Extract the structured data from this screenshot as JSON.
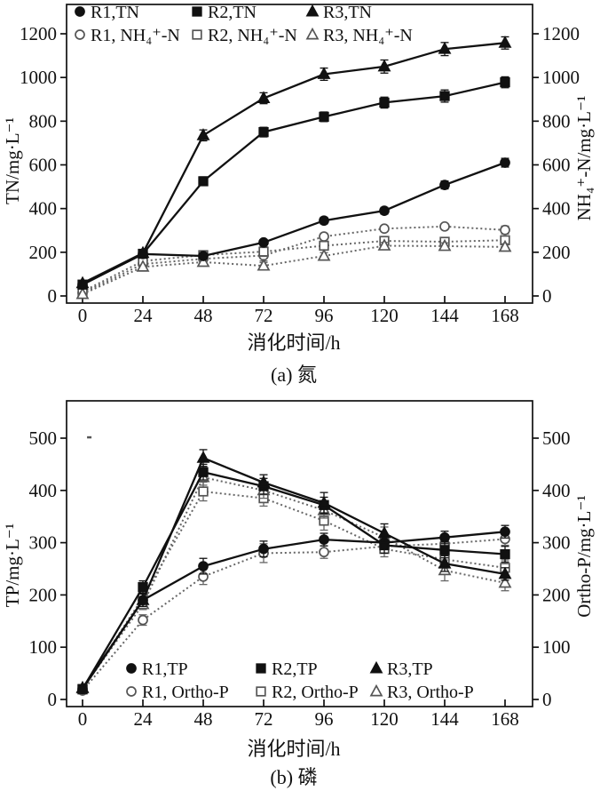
{
  "figure": {
    "background": "#ffffff",
    "colors": {
      "solid_line": "#111111",
      "dotted_line": "#666666",
      "open_marker_stroke": "#555555",
      "filled_marker": "#111111",
      "axis": "#111111"
    }
  },
  "chart_data": [
    {
      "id": "panel-a",
      "type": "line",
      "caption": "(a) 氮",
      "xlabel": "消化时间/h",
      "ylabel_left": "TN/mg·L⁻¹",
      "ylabel_right": "NH₄⁺-N/mg·L⁻¹",
      "x": [
        0,
        24,
        48,
        72,
        96,
        120,
        144,
        168
      ],
      "xticks": [
        0,
        24,
        48,
        72,
        96,
        120,
        144,
        168
      ],
      "yticks": [
        0,
        200,
        400,
        600,
        800,
        1000,
        1200
      ],
      "y_tick_max": 1200,
      "x_max": 168,
      "grid": false,
      "legend_position": "top-inside",
      "legend_rows": [
        [
          "R1,TN",
          "R2,TN",
          "R3,TN"
        ],
        [
          "R1, NH₄⁺-N",
          "R2, NH₄⁺-N",
          "R3, NH₄⁺-N"
        ]
      ],
      "series": [
        {
          "name": "R1,TN",
          "marker": "circle",
          "fill": "filled",
          "line": "solid",
          "values": [
            52,
            192,
            183,
            245,
            345,
            390,
            508,
            610
          ],
          "err": [
            8,
            10,
            10,
            12,
            15,
            15,
            18,
            20
          ]
        },
        {
          "name": "R2,TN",
          "marker": "square",
          "fill": "filled",
          "line": "solid",
          "values": [
            52,
            193,
            525,
            750,
            820,
            885,
            915,
            978
          ],
          "err": [
            8,
            10,
            20,
            22,
            22,
            25,
            28,
            25
          ]
        },
        {
          "name": "R3,TN",
          "marker": "triangle",
          "fill": "filled",
          "line": "solid",
          "values": [
            58,
            196,
            735,
            905,
            1015,
            1050,
            1130,
            1158
          ],
          "err": [
            8,
            10,
            25,
            25,
            28,
            30,
            30,
            28
          ]
        },
        {
          "name": "R1, NH₄⁺-N",
          "marker": "circle",
          "fill": "open",
          "line": "dotted",
          "values": [
            14,
            146,
            170,
            185,
            272,
            308,
            318,
            302
          ],
          "err": [
            5,
            10,
            15,
            25,
            15,
            12,
            12,
            18
          ]
        },
        {
          "name": "R2, NH₄⁺-N",
          "marker": "square",
          "fill": "open",
          "line": "dotted",
          "values": [
            20,
            160,
            187,
            203,
            230,
            252,
            248,
            255
          ],
          "err": [
            5,
            10,
            18,
            22,
            20,
            18,
            18,
            15
          ]
        },
        {
          "name": "R3, NH₄⁺-N",
          "marker": "triangle",
          "fill": "open",
          "line": "dotted",
          "values": [
            8,
            133,
            155,
            138,
            183,
            230,
            228,
            224
          ],
          "err": [
            5,
            8,
            12,
            15,
            15,
            15,
            15,
            15
          ]
        }
      ]
    },
    {
      "id": "panel-b",
      "type": "line",
      "caption": "(b) 磷",
      "xlabel": "消化时间/h",
      "ylabel_left": "TP/mg·L⁻¹",
      "ylabel_right": "Ortho-P/mg·L⁻¹",
      "x": [
        0,
        24,
        48,
        72,
        96,
        120,
        144,
        168
      ],
      "xticks": [
        0,
        24,
        48,
        72,
        96,
        120,
        144,
        168
      ],
      "yticks": [
        0,
        100,
        200,
        300,
        400,
        500
      ],
      "y_tick_max": 500,
      "x_max": 168,
      "grid": false,
      "legend_position": "bottom-inside",
      "legend_rows": [
        [
          "R1,TP",
          "R2,TP",
          "R3,TP"
        ],
        [
          "R1, Ortho-P",
          "R2, Ortho-P",
          "R3, Ortho-P"
        ]
      ],
      "stray_mark": {
        "x": 2.5,
        "y": 502
      },
      "series": [
        {
          "name": "R1,TP",
          "marker": "circle",
          "fill": "filled",
          "line": "solid",
          "values": [
            20,
            190,
            255,
            288,
            306,
            300,
            310,
            321
          ],
          "err": [
            5,
            12,
            15,
            15,
            12,
            12,
            12,
            12
          ]
        },
        {
          "name": "R2,TP",
          "marker": "square",
          "fill": "filled",
          "line": "solid",
          "values": [
            20,
            215,
            435,
            408,
            372,
            295,
            286,
            278
          ],
          "err": [
            5,
            12,
            15,
            15,
            15,
            15,
            15,
            15
          ]
        },
        {
          "name": "R3,TP",
          "marker": "triangle",
          "fill": "filled",
          "line": "solid",
          "values": [
            22,
            190,
            462,
            415,
            376,
            318,
            260,
            240
          ],
          "err": [
            5,
            12,
            16,
            15,
            20,
            18,
            15,
            12
          ]
        },
        {
          "name": "R1, Ortho-P",
          "marker": "circle",
          "fill": "open",
          "line": "dotted",
          "values": [
            17,
            152,
            235,
            280,
            282,
            293,
            298,
            307
          ],
          "err": [
            4,
            10,
            15,
            18,
            12,
            12,
            15,
            12
          ]
        },
        {
          "name": "R2, Ortho-P",
          "marker": "square",
          "fill": "open",
          "line": "dotted",
          "values": [
            19,
            195,
            398,
            385,
            342,
            288,
            268,
            252
          ],
          "err": [
            4,
            10,
            18,
            15,
            18,
            15,
            12,
            15
          ]
        },
        {
          "name": "R3, Ortho-P",
          "marker": "triangle",
          "fill": "open",
          "line": "dotted",
          "values": [
            21,
            182,
            425,
            400,
            362,
            310,
            247,
            223
          ],
          "err": [
            4,
            10,
            15,
            15,
            15,
            20,
            20,
            15
          ]
        }
      ]
    }
  ]
}
